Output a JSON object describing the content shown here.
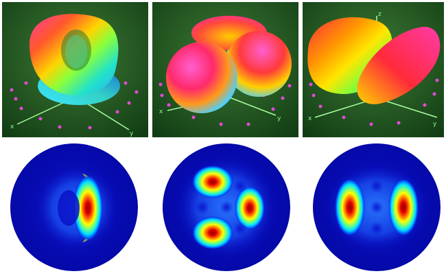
{
  "axis_labels": {
    "x": "x",
    "y": "y",
    "z": "z"
  },
  "colors": {
    "background": "#ffffff",
    "ground_dark": "#0d3a10",
    "ground_mid": "#2f6b2c",
    "axis": "#a8ffa0",
    "sphere_marker": "#e24ad6",
    "disk_base": "#0a12c8",
    "colormap": [
      "#0000aa",
      "#0055ff",
      "#00e0ff",
      "#70ff80",
      "#ffff00",
      "#ff7a00",
      "#e00000",
      "#900000"
    ]
  },
  "top_panels": [
    {
      "name": "torus-lobe-shape"
    },
    {
      "name": "three-lobe-shape"
    },
    {
      "name": "two-lobe-shape"
    }
  ],
  "bottom_panels": [
    {
      "name": "crescent-intensity-map"
    },
    {
      "name": "three-hotspot-intensity-map"
    },
    {
      "name": "two-hotspot-intensity-map"
    }
  ]
}
